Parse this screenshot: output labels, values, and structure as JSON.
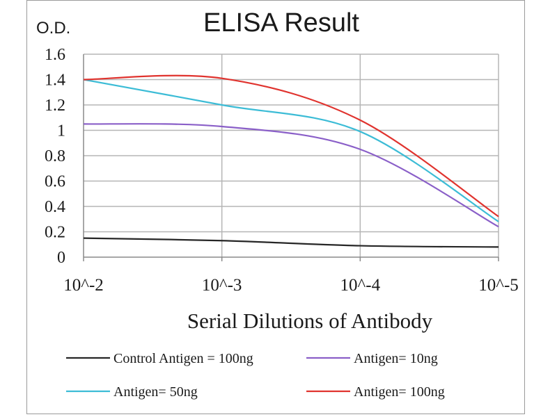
{
  "chart_data": {
    "type": "line",
    "title": "ELISA Result",
    "ylabel": "O.D.",
    "xlabel": "Serial Dilutions  of Antibody",
    "x_ticks": [
      "10^-2",
      "10^-3",
      "10^-4",
      "10^-5"
    ],
    "y_ticks": [
      "0",
      "0.2",
      "0.4",
      "0.6",
      "0.8",
      "1",
      "1.2",
      "1.4",
      "1.6"
    ],
    "ylim": [
      0,
      1.6
    ],
    "grid": true,
    "legend_position": "bottom",
    "series": [
      {
        "name": "Control Antigen = 100ng",
        "color": "#262626",
        "values": [
          0.15,
          0.13,
          0.09,
          0.08
        ]
      },
      {
        "name": "Antigen= 10ng",
        "color": "#8a5fc8",
        "values": [
          1.05,
          1.03,
          0.85,
          0.24
        ]
      },
      {
        "name": "Antigen= 50ng",
        "color": "#3cbcd6",
        "values": [
          1.4,
          1.2,
          0.99,
          0.28
        ]
      },
      {
        "name": "Antigen= 100ng",
        "color": "#e0332e",
        "values": [
          1.4,
          1.41,
          1.08,
          0.32
        ]
      }
    ]
  }
}
